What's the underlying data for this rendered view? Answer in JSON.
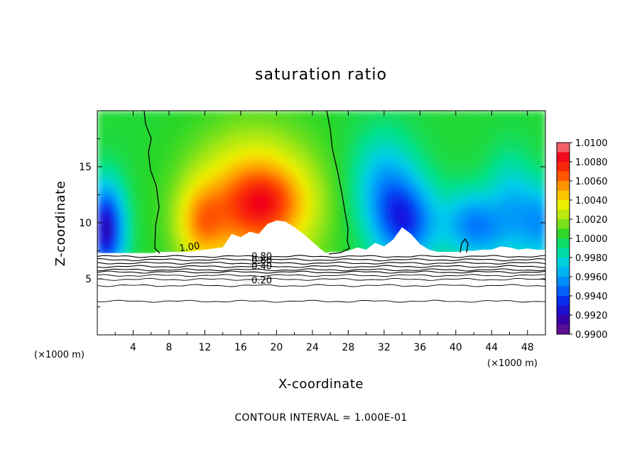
{
  "chart_data": {
    "type": "heatmap",
    "title": "saturation ratio",
    "xlabel": "X-coordinate",
    "ylabel": "Z-coordinate",
    "x_unit": "(×1000 m)",
    "y_unit": "(×1000 m)",
    "xlim": [
      0,
      50
    ],
    "ylim": [
      0,
      20
    ],
    "x_ticks": [
      4,
      8,
      12,
      16,
      20,
      24,
      28,
      32,
      36,
      40,
      44,
      48
    ],
    "y_ticks": [
      5,
      10,
      15
    ],
    "footer": "CONTOUR INTERVAL = 1.000E-01",
    "colorbar": {
      "min": 0.99,
      "max": 1.01,
      "labels": [
        "1.0100",
        "1.0080",
        "1.0060",
        "1.0040",
        "1.0020",
        "1.0000",
        "0.9980",
        "0.9960",
        "0.9940",
        "0.9920",
        "0.9900"
      ]
    },
    "contour_labels": [
      "1.00",
      "0.80",
      "0.60",
      "0.40",
      "0.20"
    ],
    "contour_levels_z": [
      7.0,
      6.7,
      6.4,
      6.1,
      5.8,
      5.6,
      5.3,
      4.95,
      4.4,
      3.0
    ],
    "saturated_top_profile": {
      "x": [
        6.5,
        8,
        10,
        12,
        14,
        15,
        16,
        17,
        18,
        19,
        20,
        21,
        22,
        23,
        24,
        25,
        25.5,
        26,
        27,
        28,
        29,
        30,
        31,
        32,
        33,
        34,
        35,
        36,
        37,
        38,
        39,
        40,
        41,
        42,
        43,
        44,
        45,
        46,
        47,
        48,
        49,
        50
      ],
      "z": [
        7.4,
        7.4,
        7.4,
        7.6,
        7.8,
        9.0,
        8.7,
        9.2,
        9.0,
        9.9,
        10.2,
        10.1,
        9.6,
        9.0,
        8.3,
        7.6,
        7.3,
        7.4,
        7.4,
        7.5,
        7.8,
        7.6,
        8.2,
        7.9,
        8.5,
        9.6,
        9.0,
        8.1,
        7.6,
        7.4,
        7.4,
        7.4,
        7.5,
        7.5,
        7.6,
        7.6,
        7.9,
        7.8,
        7.6,
        7.7,
        7.6,
        7.6
      ]
    }
  }
}
